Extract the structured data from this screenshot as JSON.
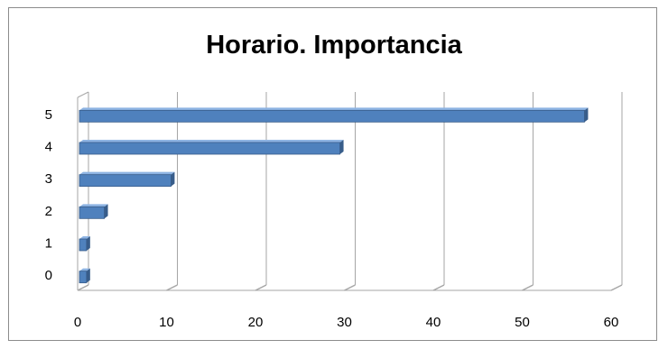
{
  "chart_data": {
    "type": "bar",
    "orientation": "horizontal",
    "title": "Horario. Importancia",
    "categories": [
      "0",
      "1",
      "2",
      "3",
      "4",
      "5"
    ],
    "values": [
      1,
      1,
      3,
      10.5,
      29.5,
      57
    ],
    "xlim": [
      0,
      60
    ],
    "x_ticks": [
      "0",
      "10",
      "20",
      "30",
      "40",
      "50",
      "60"
    ],
    "grid": true,
    "legend": "none",
    "style": "3d",
    "colors": {
      "bar": "#4f81bd",
      "bar_dark": "#385d8a",
      "bar_light": "#8eb4e3",
      "grid": "#a6a6a6"
    }
  }
}
